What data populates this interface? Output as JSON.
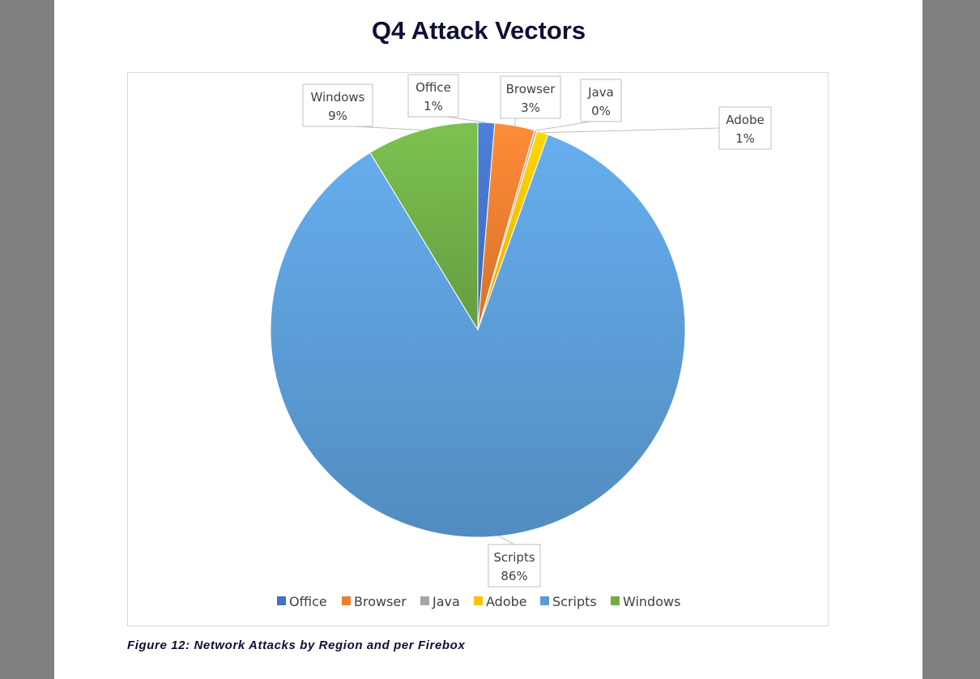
{
  "page": {
    "title": "Q4 Attack Vectors",
    "caption": "Figure 12: Network Attacks by Region and per Firebox"
  },
  "chart_data": {
    "type": "pie",
    "title": "Q4 Attack Vectors",
    "legend_position": "bottom",
    "slices": [
      {
        "name": "Office",
        "value": 1.3,
        "label": "1%",
        "color": "#4472c4"
      },
      {
        "name": "Browser",
        "value": 3.1,
        "label": "3%",
        "color": "#ed7d31"
      },
      {
        "name": "Java",
        "value": 0.2,
        "label": "0%",
        "color": "#a5a5a5"
      },
      {
        "name": "Adobe",
        "value": 0.9,
        "label": "1%",
        "color": "#ffc000"
      },
      {
        "name": "Scripts",
        "value": 85.8,
        "label": "86%",
        "color": "#5b9bd5"
      },
      {
        "name": "Windows",
        "value": 8.7,
        "label": "9%",
        "color": "#70ad47"
      }
    ]
  }
}
